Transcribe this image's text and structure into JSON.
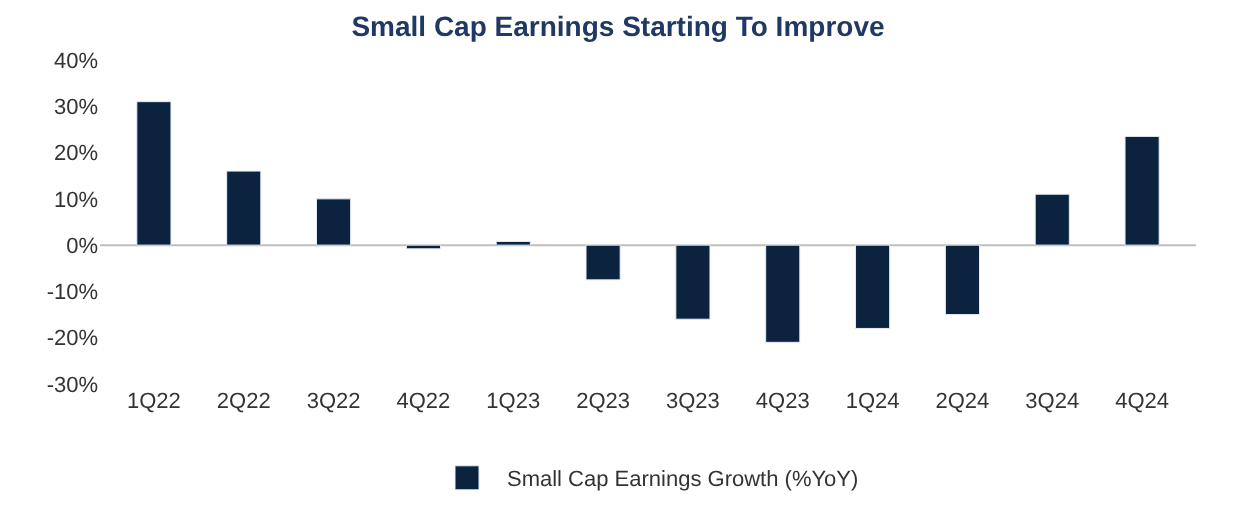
{
  "chart_data": {
    "type": "bar",
    "title": "Small Cap Earnings Starting To Improve",
    "categories": [
      "1Q22",
      "2Q22",
      "3Q22",
      "4Q22",
      "1Q23",
      "2Q23",
      "3Q23",
      "4Q23",
      "1Q24",
      "2Q24",
      "3Q24",
      "4Q24"
    ],
    "series": [
      {
        "name": "Small Cap Earnings Growth (%YoY)",
        "color": "#0c2340",
        "values": [
          31,
          16,
          10,
          -0.8,
          0.8,
          -7.5,
          -16,
          -21,
          -18,
          -15,
          11,
          23.5
        ]
      }
    ],
    "ylim": [
      -30,
      40
    ],
    "yticks": [
      {
        "value": -30,
        "label": "-30%"
      },
      {
        "value": -20,
        "label": "-20%"
      },
      {
        "value": -10,
        "label": "-10%"
      },
      {
        "value": 0,
        "label": "0%"
      },
      {
        "value": 10,
        "label": "10%"
      },
      {
        "value": 20,
        "label": "20%"
      },
      {
        "value": 30,
        "label": "30%"
      },
      {
        "value": 40,
        "label": "40%"
      }
    ],
    "ref_lines": [
      {
        "axis": "y",
        "value": 0,
        "color": "#bfbfbf"
      }
    ],
    "grid": false,
    "legend": "bottom"
  }
}
